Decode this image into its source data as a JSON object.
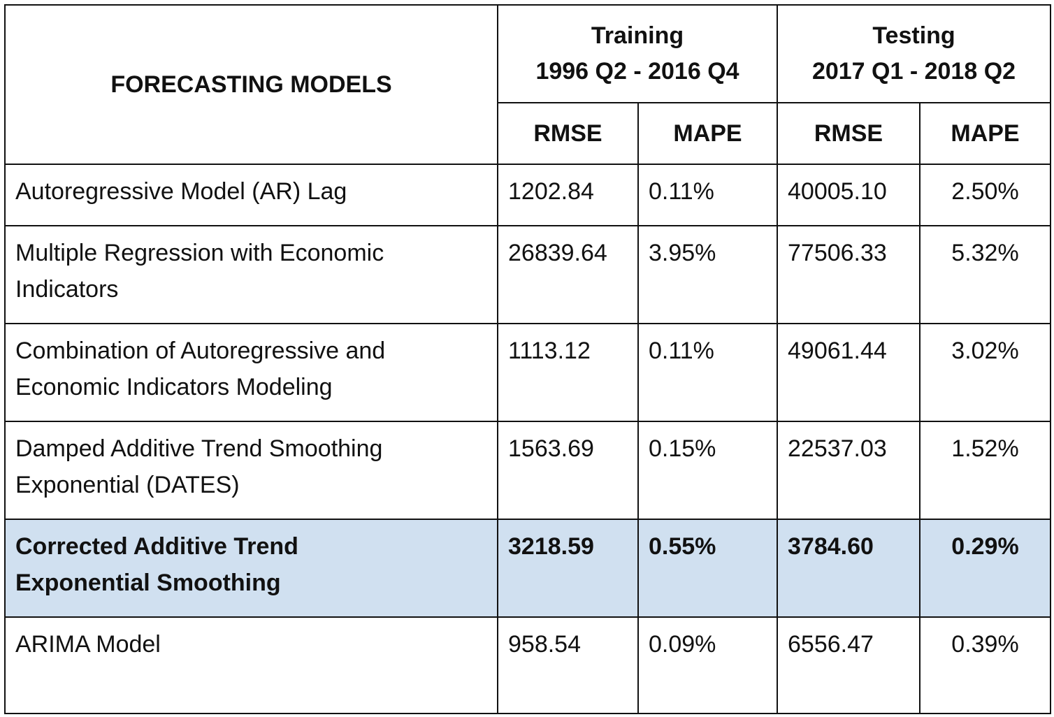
{
  "table": {
    "header": {
      "models_label": "FORECASTING MODELS",
      "training": {
        "label": "Training",
        "period": "1996 Q2 - 2016 Q4"
      },
      "testing": {
        "label": "Testing",
        "period": "2017 Q1 - 2018 Q2"
      },
      "metrics": [
        "RMSE",
        "MAPE",
        "RMSE",
        "MAPE"
      ]
    },
    "rows": [
      {
        "name_lines": [
          "Autoregressive Model (AR) Lag"
        ],
        "train_rmse": "1202.84",
        "train_mape": "0.11%",
        "test_rmse": "40005.10",
        "test_mape": "2.50%"
      },
      {
        "name_lines": [
          "Multiple Regression with Economic",
          "Indicators"
        ],
        "train_rmse": "26839.64",
        "train_mape": "3.95%",
        "test_rmse": "77506.33",
        "test_mape": "5.32%"
      },
      {
        "name_lines": [
          "Combination of Autoregressive and",
          "Economic Indicators Modeling"
        ],
        "train_rmse": "1113.12",
        "train_mape": "0.11%",
        "test_rmse": "49061.44",
        "test_mape": "3.02%"
      },
      {
        "name_lines": [
          "Damped Additive Trend Smoothing",
          "Exponential (DATES)"
        ],
        "train_rmse": "1563.69",
        "train_mape": "0.15%",
        "test_rmse": "22537.03",
        "test_mape": "1.52%"
      },
      {
        "name_lines": [
          "Corrected Additive Trend",
          "Exponential Smoothing"
        ],
        "train_rmse": "3218.59",
        "train_mape": "0.55%",
        "test_rmse": "3784.60",
        "test_mape": "0.29%"
      },
      {
        "name_lines": [
          "ARIMA Model"
        ],
        "train_rmse": "958.54",
        "train_mape": "0.09%",
        "test_rmse": "6556.47",
        "test_mape": "0.39%"
      }
    ]
  },
  "colors": {
    "highlight_row": "#d0e0f0",
    "border": "#111111"
  }
}
